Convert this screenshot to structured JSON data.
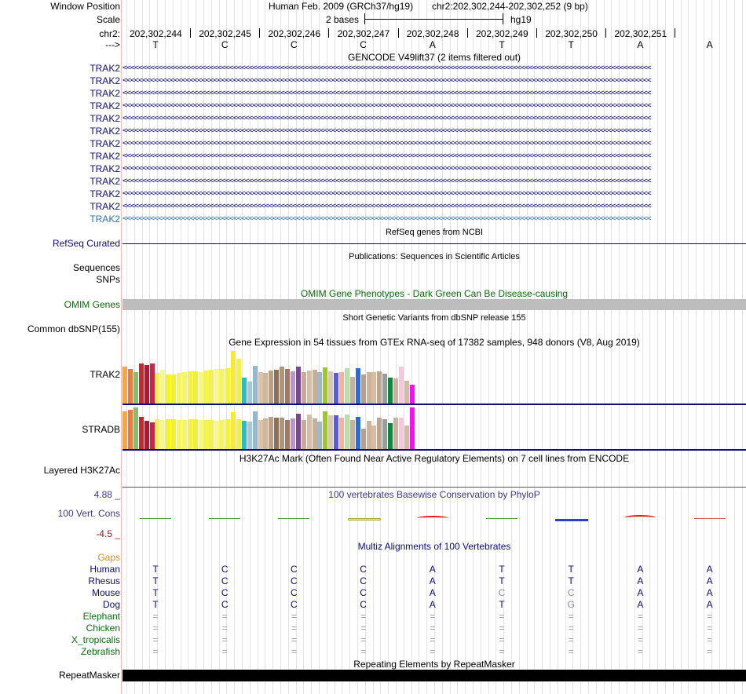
{
  "header": {
    "window_position_label": "Window Position",
    "assembly_title": "Human Feb. 2009 (GRCh37/hg19)",
    "position_text": "chr2:202,302,244-202,302,252 (9 bp)",
    "scale_label": "Scale",
    "scale_value": "2 bases",
    "scale_assembly": "hg19",
    "chrom_label": "chr2:",
    "strand_label": "--->",
    "positions": [
      "202,302,244",
      "202,302,245",
      "202,302,246",
      "202,302,247",
      "202,302,248",
      "202,302,249",
      "202,302,250",
      "202,302,251"
    ],
    "bases": [
      "T",
      "C",
      "C",
      "C",
      "A",
      "T",
      "T",
      "A",
      "A"
    ]
  },
  "gencode": {
    "title": "GENCODE V49lift37 (2 items filtered out)",
    "gene_label": "TRAK2",
    "strand_arrows": "<<<<<<<<<<<<<<<<<<<<<<<<<<<<<<<<<<<<<<<<<<<<<<<<<<<<<<<<<<<<<<<<<<<<<<<<<<<<<<<<<<<<<<<<<<<<<<<<<<<<<<<<<<<<<<<<<<<<<<<<<<<<<<<<<<<<<<",
    "color": "#0c0c78",
    "last_color": "#2a6fb0"
  },
  "refseq": {
    "title": "RefSeq genes from NCBI",
    "label": "RefSeq Curated",
    "color": "#0c0c78"
  },
  "publications": {
    "title": "Publications: Sequences in Scientific Articles",
    "label1": "Sequences",
    "label2": "SNPs"
  },
  "omim": {
    "title": "OMIM Gene Phenotypes - Dark Green Can Be Disease-causing",
    "label": "OMIM Genes",
    "color": "#0b6b0b"
  },
  "dbsnp": {
    "title": "Short Genetic Variants from dbSNP release 155",
    "label": "Common dbSNP(155)"
  },
  "gtex": {
    "title": "Gene Expression in 54 tissues from GTEx RNA-seq of 17382 samples, 948 donors (V8, Aug 2019)",
    "genes": [
      {
        "name": "TRAK2",
        "values": [
          47,
          44,
          40,
          51,
          49,
          51,
          39,
          43,
          37,
          37,
          39,
          40,
          41,
          41,
          40,
          42,
          43,
          44,
          44,
          45,
          67,
          57,
          33,
          28,
          48,
          40,
          39,
          42,
          43,
          47,
          44,
          41,
          47,
          40,
          42,
          43,
          40,
          46,
          41,
          39,
          40,
          45,
          34,
          45,
          37,
          40,
          40,
          41,
          38,
          33,
          32,
          47,
          29,
          24
        ]
      },
      {
        "name": "STRADB",
        "values": [
          48,
          50,
          53,
          41,
          36,
          34,
          38,
          37,
          38,
          38,
          37,
          37,
          38,
          38,
          37,
          37,
          37,
          36,
          37,
          38,
          47,
          38,
          36,
          35,
          48,
          37,
          39,
          41,
          40,
          40,
          37,
          39,
          45,
          37,
          44,
          39,
          35,
          48,
          43,
          43,
          40,
          44,
          37,
          41,
          26,
          36,
          30,
          40,
          38,
          33,
          40,
          40,
          30,
          53
        ]
      }
    ],
    "colors": [
      "#f4a64a",
      "#ef7a3a",
      "#8bbc72",
      "#c22b2b",
      "#aa1b39",
      "#cd2446",
      "#f0f060",
      "#f7f792",
      "#f5f51e",
      "#f2f22a",
      "#f5f55c",
      "#f4f46e",
      "#f2f244",
      "#f0f036",
      "#f7f77c",
      "#f3f356",
      "#f1f14a",
      "#f8f884",
      "#f4f466",
      "#f2f23c",
      "#f7e83a",
      "#f2f23e",
      "#25bfcc",
      "#a7c5dc",
      "#95b8d0",
      "#ddc2a6",
      "#cdb59e",
      "#ba9f86",
      "#8f6f55",
      "#ad957c",
      "#a27a60",
      "#b897ce",
      "#7b4497",
      "#c9a99a",
      "#d6bda7",
      "#c7ae98",
      "#a3b8c2",
      "#9fc52f",
      "#d6c9b7",
      "#5a5ae1",
      "#f0b49d",
      "#bcddab",
      "#c1b39f",
      "#2b6bd6",
      "#b7a08c",
      "#ccb39b",
      "#d8bba2",
      "#bca68f",
      "#9c9c9c",
      "#0a8a3b",
      "#c8b3a0",
      "#f3c7dc",
      "#d4bc9e",
      "#f60ff0"
    ]
  },
  "h3k27ac": {
    "title": "H3K27Ac Mark (Often Found Near Active Regulatory Elements) on 7 cell lines from ENCODE",
    "label": "Layered H3K27Ac"
  },
  "phylop": {
    "title": "100 vertebrates Basewise Conservation by PhyloP",
    "label": "100 Vert. Cons",
    "max": "4.88 _",
    "min": "-4.5 _",
    "scores": [
      0.1,
      0.05,
      0.05,
      0.3,
      0.8,
      0.05,
      -0.2,
      1.0,
      0.05
    ]
  },
  "multiz": {
    "title": "Multiz Alignments of 100 Vertebrates",
    "gaps_label": "Gaps",
    "species": [
      {
        "name": "Human",
        "bases": [
          "T",
          "C",
          "C",
          "C",
          "A",
          "T",
          "T",
          "A",
          "A"
        ],
        "color": "#0c0c78"
      },
      {
        "name": "Rhesus",
        "bases": [
          "T",
          "C",
          "C",
          "C",
          "A",
          "T",
          "T",
          "A",
          "A"
        ],
        "color": "#0c0c78"
      },
      {
        "name": "Mouse",
        "bases": [
          "T",
          "C",
          "C",
          "C",
          "A",
          "C",
          "C",
          "A",
          "A"
        ],
        "color": "#0c0c78"
      },
      {
        "name": "Dog",
        "bases": [
          "T",
          "C",
          "C",
          "C",
          "A",
          "T",
          "G",
          "A",
          "A"
        ],
        "color": "#0c0c78"
      },
      {
        "name": "Elephant",
        "bases": [
          "=",
          "=",
          "=",
          "=",
          "=",
          "=",
          "=",
          "=",
          "="
        ],
        "color": "#0b6b0b"
      },
      {
        "name": "Chicken",
        "bases": [
          "=",
          "=",
          "=",
          "=",
          "=",
          "=",
          "=",
          "=",
          "="
        ],
        "color": "#0b6b0b"
      },
      {
        "name": "X_tropicalis",
        "bases": [
          "=",
          "=",
          "=",
          "=",
          "=",
          "=",
          "=",
          "=",
          "="
        ],
        "color": "#0b6b0b"
      },
      {
        "name": "Zebrafish",
        "bases": [
          "=",
          "=",
          "=",
          "=",
          "=",
          "=",
          "=",
          "=",
          "="
        ],
        "color": "#0b6b0b"
      }
    ]
  },
  "repeatmasker": {
    "title": "Repeating Elements by RepeatMasker",
    "label": "RepeatMasker"
  }
}
